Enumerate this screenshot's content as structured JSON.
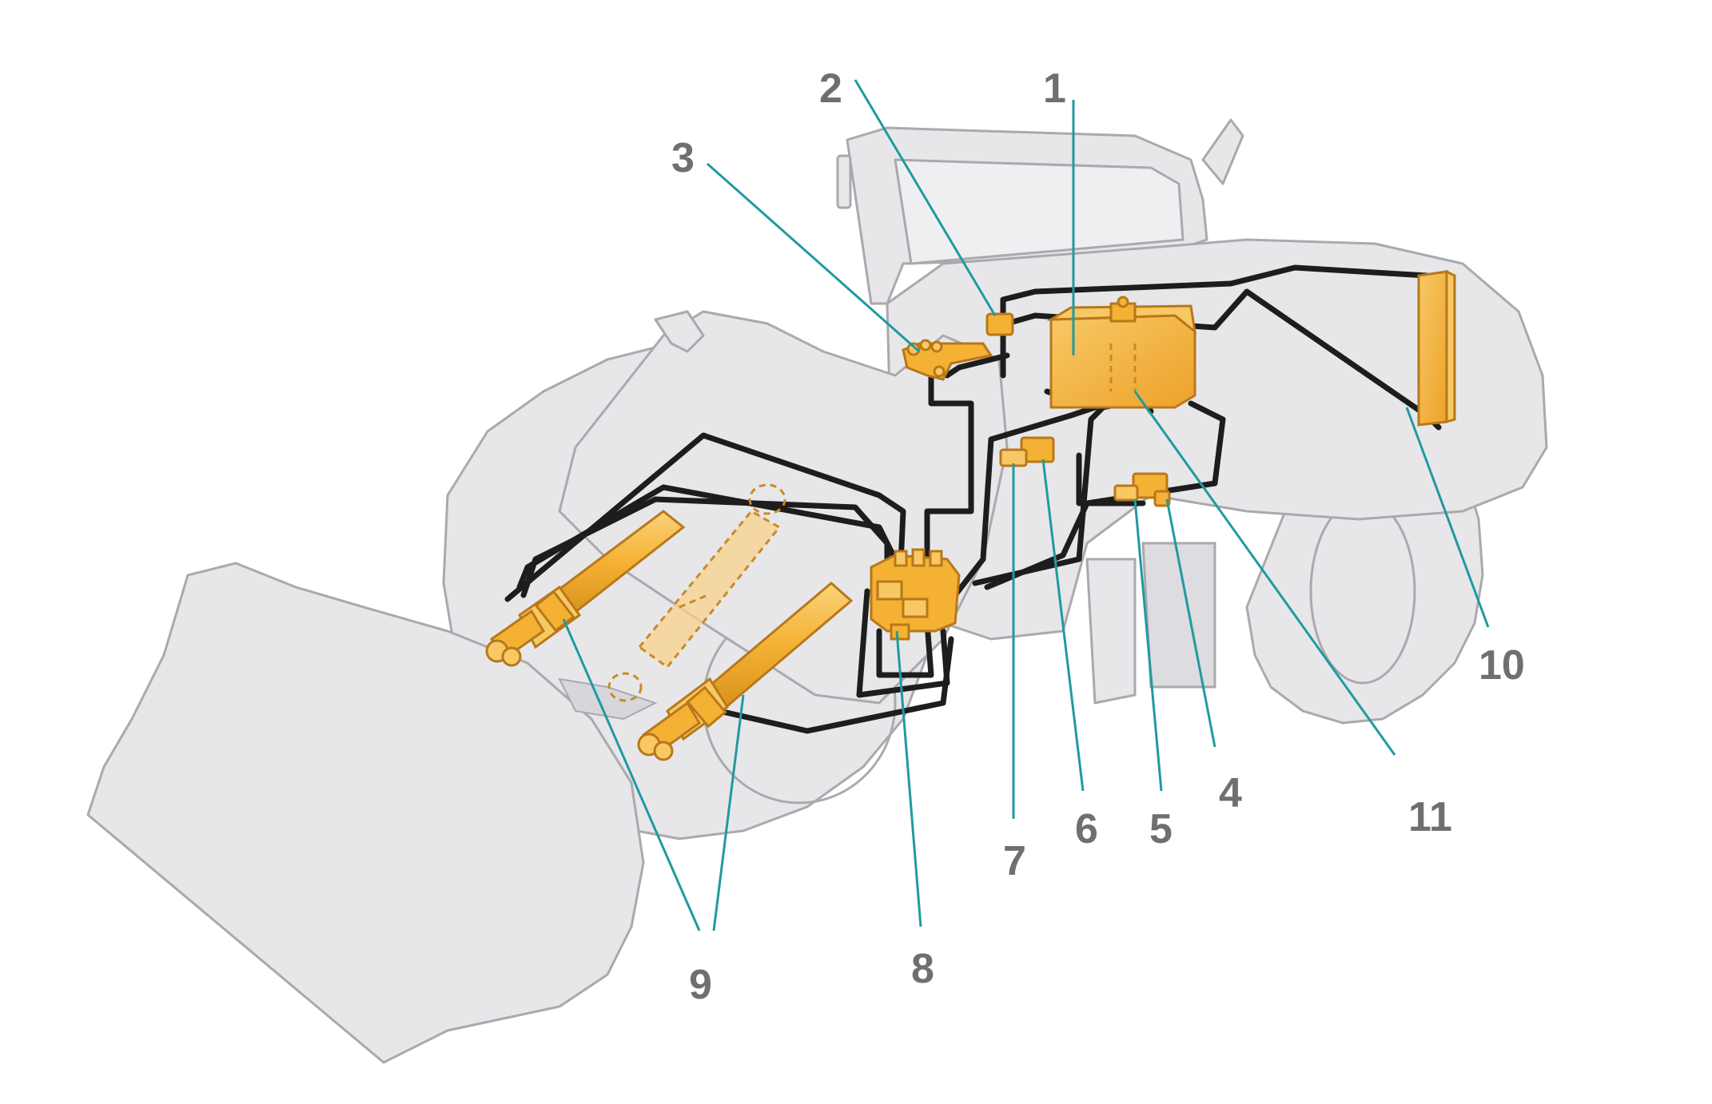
{
  "figure": {
    "title": "",
    "callouts": [
      {
        "id": "1",
        "label": "1"
      },
      {
        "id": "2",
        "label": "2"
      },
      {
        "id": "3",
        "label": "3"
      },
      {
        "id": "4",
        "label": "4"
      },
      {
        "id": "5",
        "label": "5"
      },
      {
        "id": "6",
        "label": "6"
      },
      {
        "id": "7",
        "label": "7"
      },
      {
        "id": "8",
        "label": "8"
      },
      {
        "id": "9",
        "label": "9"
      },
      {
        "id": "10",
        "label": "10"
      },
      {
        "id": "11",
        "label": "11"
      }
    ]
  },
  "colors": {
    "component_fill": "#f4b133",
    "component_light": "#f8c865",
    "hose": "#1d1d1d",
    "leader_line": "#1f9aa0",
    "vehicle_silhouette": "#e7e7ea",
    "label_text": "#6f6f6f"
  }
}
